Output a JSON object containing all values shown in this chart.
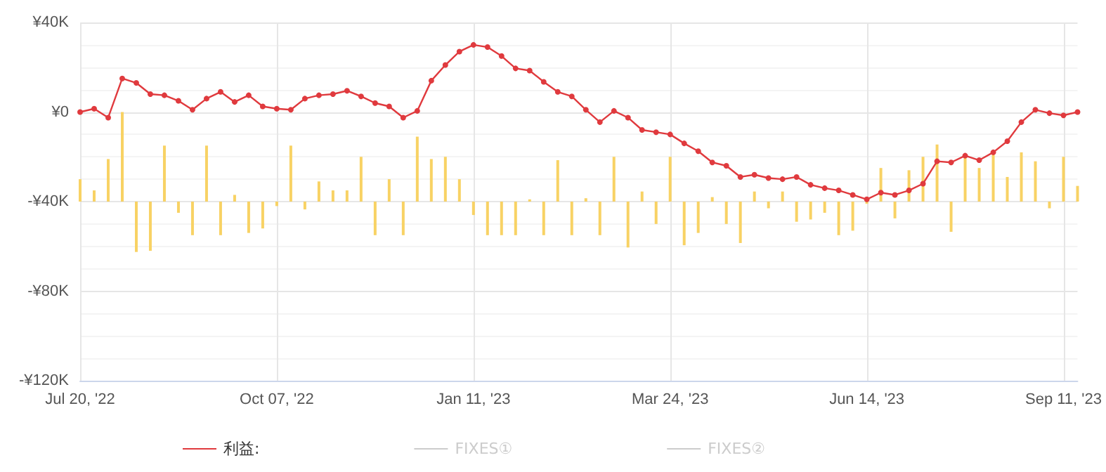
{
  "chart_data": {
    "type": "line",
    "categories": [
      "Jul 20, '22",
      null,
      null,
      null,
      null,
      null,
      null,
      null,
      null,
      null,
      null,
      null,
      null,
      null,
      "Oct 07, '22",
      null,
      null,
      null,
      null,
      null,
      null,
      null,
      null,
      null,
      null,
      null,
      null,
      null,
      "Jan 11, '23",
      null,
      null,
      null,
      null,
      null,
      null,
      null,
      null,
      null,
      null,
      null,
      null,
      null,
      "Mar 24, '23",
      null,
      null,
      null,
      null,
      null,
      null,
      null,
      null,
      null,
      null,
      null,
      null,
      null,
      "Jun 14, '23",
      null,
      null,
      null,
      null,
      null,
      null,
      null,
      null,
      null,
      null,
      null,
      null,
      null,
      "Sep 11, '23",
      null
    ],
    "series": [
      {
        "name": "利益:",
        "color": "#e03a3e",
        "values": [
          0,
          1500,
          -2500,
          15000,
          13000,
          8000,
          7500,
          5000,
          1000,
          6000,
          9000,
          4500,
          7500,
          2500,
          1500,
          1000,
          6000,
          7500,
          8000,
          9500,
          7000,
          4000,
          2500,
          -2500,
          500,
          14000,
          21000,
          27000,
          30000,
          29000,
          25000,
          19500,
          18500,
          13500,
          9000,
          7000,
          1000,
          -4500,
          500,
          -2500,
          -8000,
          -9000,
          -10000,
          -14000,
          -17500,
          -22500,
          -24000,
          -29000,
          -28000,
          -29500,
          -30000,
          -29000,
          -32500,
          -34000,
          -35000,
          -37000,
          -39000,
          -36000,
          -37000,
          -35000,
          -32000,
          -22000,
          -22500,
          -19500,
          -21500,
          -18000,
          -13000,
          -4500,
          1000,
          -500,
          -1500,
          0
        ]
      },
      {
        "type": "bar",
        "color": "#f8d264",
        "base": [
          -40000,
          -40000,
          -40000,
          -40000,
          -40000,
          -40000,
          -40000,
          -40000,
          -40000,
          -40000,
          -40000,
          -40000,
          -40000,
          -40000,
          -40000,
          -40000,
          -40000,
          -40000,
          -40000,
          -40000,
          -40000,
          -40000,
          -40000,
          -40000,
          -40000,
          -40000,
          -40000,
          -40000,
          -40000,
          -40000,
          -40000,
          -40000,
          -40000,
          -40000,
          -40000,
          -40000,
          -40000,
          -40000,
          -40000,
          -40000,
          -40000,
          -40000,
          -40000,
          -40000,
          -40000,
          -40000,
          -40000,
          -40000,
          -40000,
          -40000,
          -40000,
          -40000,
          -40000,
          -40000,
          -40000,
          -40000,
          -40000,
          -40000,
          -40000,
          -40000,
          -40000,
          -40000,
          -40000,
          -40000,
          -40000,
          -40000,
          -40000,
          -40000,
          -40000,
          -40000,
          -40000,
          -40000
        ],
        "values": [
          10000,
          5000,
          19000,
          40000,
          -22500,
          -22000,
          25000,
          -5000,
          -15000,
          25000,
          -15000,
          3000,
          -14000,
          -12000,
          -2000,
          25000,
          -3500,
          9000,
          5000,
          5000,
          20000,
          -15000,
          10000,
          -15000,
          29000,
          19000,
          20000,
          10000,
          -6000,
          -15000,
          -15000,
          -15000,
          1000,
          -15000,
          18500,
          -15000,
          1500,
          -15000,
          20000,
          -20500,
          4500,
          -10000,
          20000,
          -19500,
          -14000,
          2000,
          -10000,
          -18500,
          4500,
          -3000,
          4500,
          -9000,
          -8000,
          -5000,
          -15000,
          -13000,
          -1000,
          15000,
          -7500,
          14000,
          20000,
          25500,
          -13500,
          21000,
          15000,
          21000,
          11000,
          22000,
          18000,
          -3000,
          20000,
          7000
        ]
      },
      {
        "name": "FIXES①",
        "color": "#cccccc",
        "values": [
          null,
          null,
          null,
          null,
          null,
          null,
          null,
          null,
          null,
          null,
          null,
          null,
          null,
          null,
          null,
          null,
          null,
          null,
          null,
          null,
          null,
          null,
          null,
          null,
          null,
          null,
          null,
          null,
          null,
          null,
          null,
          null,
          null,
          null,
          null,
          null,
          null,
          null,
          null,
          null,
          null,
          null,
          null,
          null,
          null,
          null,
          null,
          null,
          null,
          null,
          null,
          null,
          null,
          null,
          null,
          null,
          null,
          null,
          null,
          null,
          null,
          null,
          null,
          null,
          null,
          null,
          null,
          null,
          null,
          null,
          null,
          null
        ]
      },
      {
        "name": "FIXES②",
        "color": "#cccccc",
        "values": [
          null,
          null,
          null,
          null,
          null,
          null,
          null,
          null,
          null,
          null,
          null,
          null,
          null,
          null,
          null,
          null,
          null,
          null,
          null,
          null,
          null,
          null,
          null,
          null,
          null,
          null,
          null,
          null,
          null,
          null,
          null,
          null,
          null,
          null,
          null,
          null,
          null,
          null,
          null,
          null,
          null,
          null,
          null,
          null,
          null,
          null,
          null,
          null,
          null,
          null,
          null,
          null,
          null,
          null,
          null,
          null,
          null,
          null,
          null,
          null,
          null,
          null,
          null,
          null,
          null,
          null,
          null,
          null,
          null,
          null,
          null,
          null
        ]
      }
    ],
    "ylim": [
      -120000,
      40000
    ],
    "yticks": [
      {
        "value": -120000,
        "label": "-¥120K"
      },
      {
        "value": -80000,
        "label": "-¥80K"
      },
      {
        "value": -40000,
        "label": "-¥40K"
      },
      {
        "value": 0,
        "label": "¥0"
      },
      {
        "value": 40000,
        "label": "¥40K"
      }
    ],
    "grid": true,
    "legend": "bottom",
    "marker": "circle",
    "line_style": "solid"
  }
}
